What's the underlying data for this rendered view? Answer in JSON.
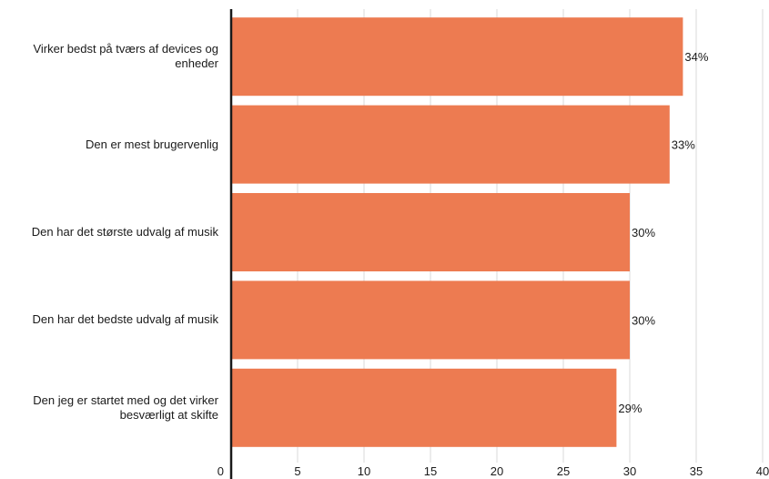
{
  "colors": {
    "bar": "#ED7B51",
    "grid": "#d9d9d9",
    "axis": "#1a1a1a"
  },
  "chart_data": {
    "type": "bar",
    "orientation": "horizontal",
    "categories": [
      "Virker bedst på tværs af devices og enheder",
      "Den er mest brugervenlig",
      "Den har det største udvalg af musik",
      "Den har det bedste udvalg af musik",
      "Den jeg er startet med og det virker besværligt at skifte"
    ],
    "values": [
      34,
      33,
      30,
      30,
      29
    ],
    "value_labels": [
      "34%",
      "33%",
      "30%",
      "30%",
      "29%"
    ],
    "xlim": [
      0,
      40
    ],
    "xticks": [
      0,
      5,
      10,
      15,
      20,
      25,
      30,
      35,
      40
    ],
    "grid": true
  }
}
